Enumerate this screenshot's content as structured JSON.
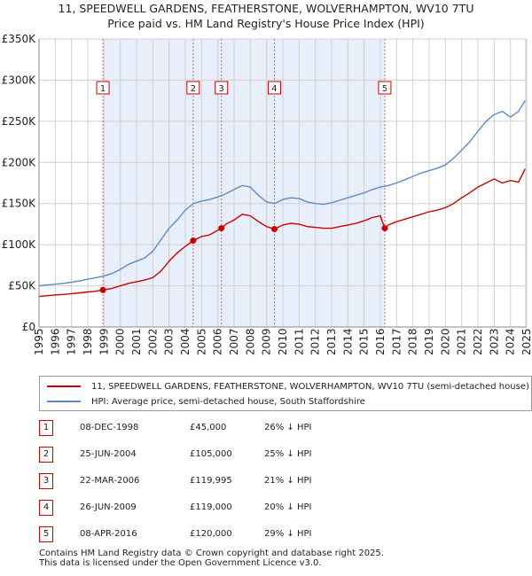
{
  "header": {
    "line1": "11, SPEEDWELL GARDENS, FEATHERSTONE, WOLVERHAMPTON, WV10 7TU",
    "line2": "Price paid vs. HM Land Registry's House Price Index (HPI)"
  },
  "chart_data": {
    "type": "line",
    "title": "11, SPEEDWELL GARDENS, FEATHERSTONE, WOLVERHAMPTON, WV10 7TU - Price paid vs. HM Land Registry's House Price Index (HPI)",
    "xlabel": "",
    "ylabel": "",
    "xlim": [
      1995,
      2025
    ],
    "ylim": [
      0,
      350000
    ],
    "y_ticks": [
      0,
      50000,
      100000,
      150000,
      200000,
      250000,
      300000,
      350000
    ],
    "y_tick_labels": [
      "£0",
      "£50K",
      "£100K",
      "£150K",
      "£200K",
      "£250K",
      "£300K",
      "£350K"
    ],
    "x_tick_labels": [
      "1995",
      "1996",
      "1997",
      "1998",
      "1999",
      "2000",
      "2001",
      "2002",
      "2003",
      "2004",
      "2005",
      "2006",
      "2007",
      "2008",
      "2009",
      "2010",
      "2011",
      "2012",
      "2013",
      "2014",
      "2015",
      "2016",
      "2017",
      "2018",
      "2019",
      "2020",
      "2021",
      "2022",
      "2023",
      "2024",
      "2025"
    ],
    "grid": true,
    "legend_position": "bottom",
    "shaded_band_color": "#e8eefa",
    "series": [
      {
        "name": "11, SPEEDWELL GARDENS, FEATHERSTONE, WOLVERHAMPTON, WV10 7TU (semi-detached house)",
        "color": "#cc0000",
        "x": [
          1995.0,
          1995.5,
          1996.0,
          1996.5,
          1997.0,
          1997.5,
          1998.0,
          1998.5,
          1998.93,
          1999.5,
          2000.0,
          2000.5,
          2001.0,
          2001.5,
          2002.0,
          2002.5,
          2003.0,
          2003.5,
          2004.0,
          2004.48,
          2005.0,
          2005.5,
          2006.22,
          2006.5,
          2007.0,
          2007.5,
          2008.0,
          2008.5,
          2009.0,
          2009.48,
          2010.0,
          2010.5,
          2011.0,
          2011.5,
          2012.0,
          2012.5,
          2013.0,
          2013.5,
          2014.0,
          2014.5,
          2015.0,
          2015.5,
          2016.0,
          2016.27,
          2016.5,
          2017.0,
          2017.5,
          2018.0,
          2018.5,
          2019.0,
          2019.5,
          2020.0,
          2020.5,
          2021.0,
          2021.5,
          2022.0,
          2022.5,
          2023.0,
          2023.5,
          2024.0,
          2024.5,
          2024.9
        ],
        "values": [
          37000,
          38000,
          39000,
          39500,
          40500,
          41500,
          42500,
          43500,
          45000,
          47000,
          50000,
          53000,
          55000,
          57000,
          60000,
          68000,
          80000,
          90000,
          98000,
          105000,
          110000,
          112000,
          119995,
          125000,
          130000,
          137000,
          135000,
          128000,
          122000,
          119000,
          124000,
          126000,
          125000,
          122000,
          121000,
          120000,
          120000,
          122000,
          124000,
          126000,
          129000,
          133000,
          135000,
          120000,
          124000,
          128000,
          131000,
          134000,
          137000,
          140000,
          142000,
          145000,
          150000,
          157000,
          163000,
          170000,
          175000,
          180000,
          175000,
          178000,
          176000,
          192000
        ]
      },
      {
        "name": "HPI: Average price, semi-detached house, South Staffordshire",
        "color": "#5b8cc8",
        "x": [
          1995.0,
          1995.5,
          1996.0,
          1996.5,
          1997.0,
          1997.5,
          1998.0,
          1998.5,
          1999.0,
          1999.5,
          2000.0,
          2000.5,
          2001.0,
          2001.5,
          2002.0,
          2002.5,
          2003.0,
          2003.5,
          2004.0,
          2004.5,
          2005.0,
          2005.5,
          2006.0,
          2006.5,
          2007.0,
          2007.5,
          2008.0,
          2008.5,
          2009.0,
          2009.5,
          2010.0,
          2010.5,
          2011.0,
          2011.5,
          2012.0,
          2012.5,
          2013.0,
          2013.5,
          2014.0,
          2014.5,
          2015.0,
          2015.5,
          2016.0,
          2016.5,
          2017.0,
          2017.5,
          2018.0,
          2018.5,
          2019.0,
          2019.5,
          2020.0,
          2020.5,
          2021.0,
          2021.5,
          2022.0,
          2022.5,
          2023.0,
          2023.5,
          2024.0,
          2024.5,
          2024.9
        ],
        "values": [
          50000,
          51000,
          52000,
          53000,
          54500,
          56000,
          58000,
          60000,
          62000,
          65000,
          70000,
          76000,
          80000,
          84000,
          92000,
          106000,
          120000,
          130000,
          142000,
          150000,
          153000,
          155000,
          158000,
          162000,
          167000,
          172000,
          170000,
          160000,
          152000,
          150000,
          155000,
          157000,
          156000,
          152000,
          150000,
          149000,
          151000,
          154000,
          157000,
          160000,
          163000,
          167000,
          170000,
          172000,
          175000,
          179000,
          183000,
          187000,
          190000,
          193000,
          197000,
          205000,
          215000,
          225000,
          238000,
          250000,
          258000,
          262000,
          255000,
          262000,
          275000
        ]
      }
    ],
    "transactions": [
      {
        "n": "1",
        "x": 1998.93,
        "price": 45000
      },
      {
        "n": "2",
        "x": 2004.48,
        "price": 105000
      },
      {
        "n": "3",
        "x": 2006.22,
        "price": 119995
      },
      {
        "n": "4",
        "x": 2009.48,
        "price": 119000
      },
      {
        "n": "5",
        "x": 2016.27,
        "price": 120000
      }
    ]
  },
  "legend": {
    "series1_label": "11, SPEEDWELL GARDENS, FEATHERSTONE, WOLVERHAMPTON, WV10 7TU (semi-detached house)",
    "series2_label": "HPI: Average price, semi-detached house, South Staffordshire"
  },
  "table": {
    "rows": [
      {
        "num": "1",
        "date": "08-DEC-1998",
        "price": "£45,000",
        "hpi": "26% ↓ HPI"
      },
      {
        "num": "2",
        "date": "25-JUN-2004",
        "price": "£105,000",
        "hpi": "25% ↓ HPI"
      },
      {
        "num": "3",
        "date": "22-MAR-2006",
        "price": "£119,995",
        "hpi": "21% ↓ HPI"
      },
      {
        "num": "4",
        "date": "26-JUN-2009",
        "price": "£119,000",
        "hpi": "20% ↓ HPI"
      },
      {
        "num": "5",
        "date": "08-APR-2016",
        "price": "£120,000",
        "hpi": "29% ↓ HPI"
      }
    ]
  },
  "footer": {
    "line1": "Contains HM Land Registry data © Crown copyright and database right 2025.",
    "line2": "This data is licensed under the Open Government Licence v3.0."
  }
}
